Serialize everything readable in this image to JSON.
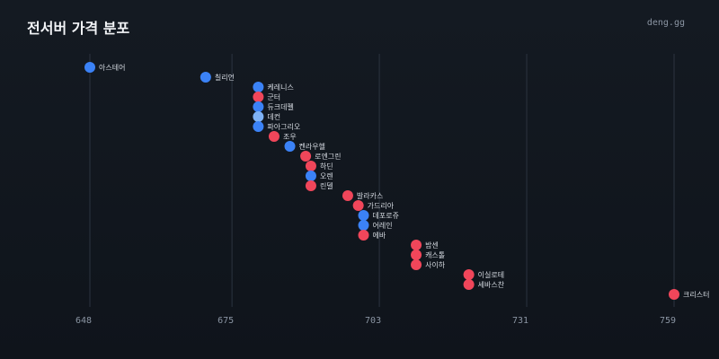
{
  "header": {
    "title": "전서버 가격 분포",
    "brand": "deng.gg"
  },
  "colors": {
    "blue": "#3b82f6",
    "light_blue": "#7fb2f5",
    "red": "#f0465a",
    "background": "#12171e"
  },
  "chart_data": {
    "type": "scatter",
    "title": "전서버 가격 분포",
    "xlabel": "",
    "ylabel": "",
    "xlim": [
      648,
      759
    ],
    "x_ticks": [
      648,
      675,
      703,
      731,
      759
    ],
    "grid": true,
    "points": [
      {
        "name": "아스테어",
        "x": 648,
        "color": "blue"
      },
      {
        "name": "칠리언",
        "x": 670,
        "color": "blue"
      },
      {
        "name": "케레니스",
        "x": 680,
        "color": "blue"
      },
      {
        "name": "군터",
        "x": 680,
        "color": "red"
      },
      {
        "name": "듀크데펠",
        "x": 680,
        "color": "blue"
      },
      {
        "name": "데컨",
        "x": 680,
        "color": "light_blue"
      },
      {
        "name": "파아그리오",
        "x": 680,
        "color": "blue"
      },
      {
        "name": "조우",
        "x": 683,
        "color": "red"
      },
      {
        "name": "켄라우헬",
        "x": 686,
        "color": "blue"
      },
      {
        "name": "로엔그린",
        "x": 689,
        "color": "red"
      },
      {
        "name": "하딘",
        "x": 690,
        "color": "red"
      },
      {
        "name": "오렌",
        "x": 690,
        "color": "blue"
      },
      {
        "name": "린델",
        "x": 690,
        "color": "red"
      },
      {
        "name": "발라카스",
        "x": 697,
        "color": "red"
      },
      {
        "name": "가드리아",
        "x": 699,
        "color": "red"
      },
      {
        "name": "데포로쥬",
        "x": 700,
        "color": "blue"
      },
      {
        "name": "어레인",
        "x": 700,
        "color": "blue"
      },
      {
        "name": "에바",
        "x": 700,
        "color": "red"
      },
      {
        "name": "밤센",
        "x": 710,
        "color": "red"
      },
      {
        "name": "캐스톨",
        "x": 710,
        "color": "red"
      },
      {
        "name": "사이하",
        "x": 710,
        "color": "red"
      },
      {
        "name": "이실로테",
        "x": 720,
        "color": "red"
      },
      {
        "name": "세바스찬",
        "x": 720,
        "color": "red"
      },
      {
        "name": "크리스터",
        "x": 759,
        "color": "red"
      }
    ]
  }
}
